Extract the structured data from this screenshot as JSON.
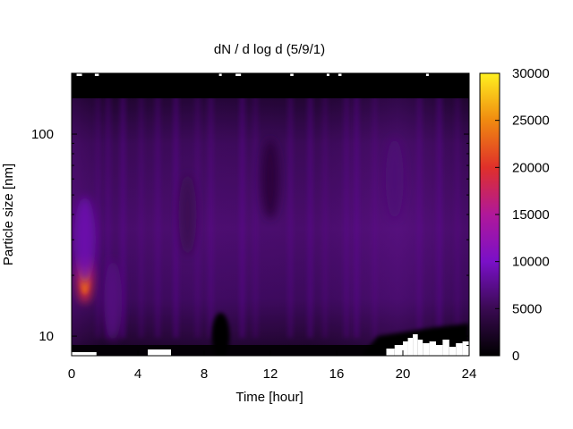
{
  "chart_data": {
    "type": "heatmap",
    "title": "dN / d log d (5/9/1)",
    "xlabel": "Time [hour]",
    "ylabel": "Particle size [nm]",
    "x_range": [
      0,
      24
    ],
    "x_ticks": [
      0,
      4,
      8,
      12,
      16,
      20,
      24
    ],
    "y_scale": "log",
    "y_range": [
      8,
      200
    ],
    "y_ticks": [
      10,
      100
    ],
    "colorbar": {
      "range": [
        0,
        30000
      ],
      "ticks": [
        0,
        5000,
        10000,
        15000,
        20000,
        25000,
        30000
      ],
      "palette": [
        "#000000",
        "#3a0a52",
        "#7a10c8",
        "#b0189a",
        "#e0302a",
        "#f08a10",
        "#fff020"
      ]
    },
    "features": [
      {
        "time_hour": 0.8,
        "size_nm": 19,
        "value": 19000
      },
      {
        "time_hour": 0.8,
        "size_nm": 30,
        "value": 9000
      },
      {
        "time_hour": 2.5,
        "size_nm": 15,
        "value": 7000
      },
      {
        "time_hour": 7.0,
        "size_nm": 40,
        "value": 5000
      },
      {
        "time_hour": 12.0,
        "size_nm": 60,
        "value": 3500
      },
      {
        "time_hour": 19.5,
        "size_nm": 60,
        "value": 6500
      },
      {
        "time_hour": 9.0,
        "size_nm": 9.5,
        "value": 0
      }
    ]
  }
}
